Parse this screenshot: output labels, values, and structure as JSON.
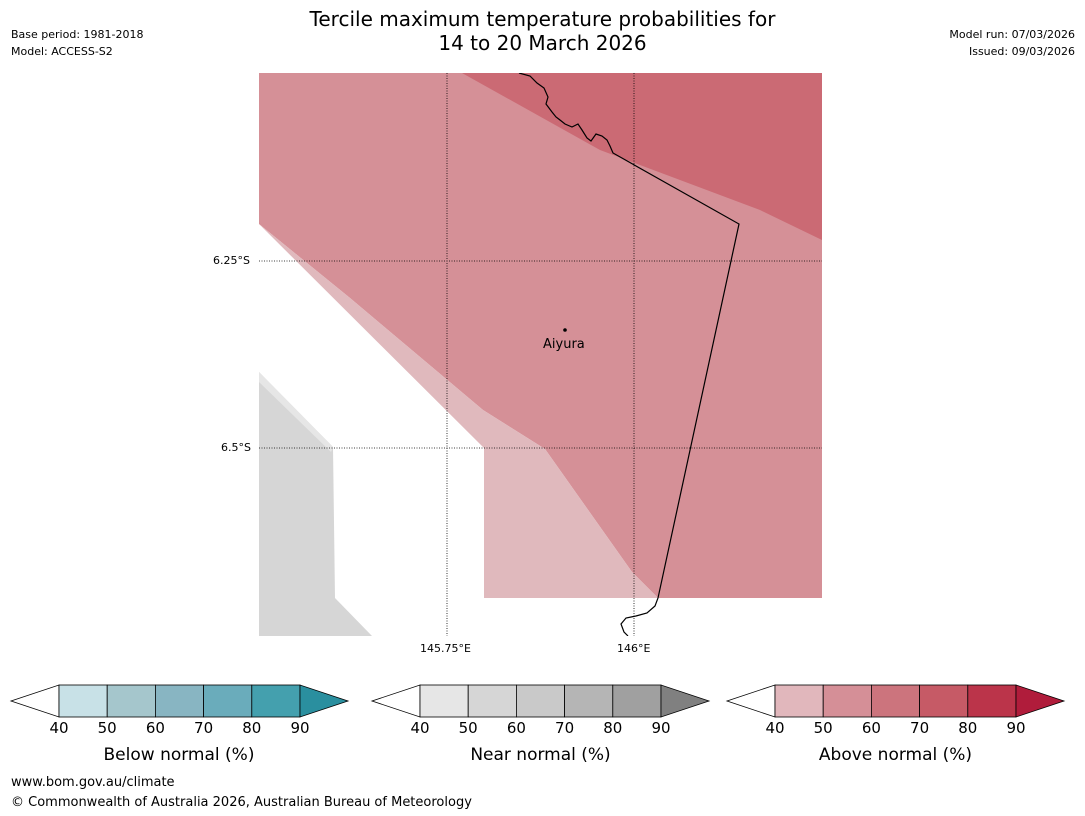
{
  "header": {
    "title_line1": "Tercile maximum temperature probabilities for",
    "title_line2": "14 to 20 March 2026",
    "base_period": "Base period: 1981-2018",
    "model": "Model: ACCESS-S2",
    "model_run": "Model run: 07/03/2026",
    "issued": "Issued: 09/03/2026"
  },
  "map": {
    "lat_labels": [
      "6.25°S",
      "6.5°S"
    ],
    "lon_labels": [
      "145.75°E",
      "146°E"
    ],
    "place": {
      "name": "Aiyura"
    }
  },
  "legend": {
    "ticks": [
      "40",
      "50",
      "60",
      "70",
      "80",
      "90"
    ],
    "below": {
      "label": "Below normal (%)",
      "colors": [
        "#c8e1e7",
        "#a5c6cc",
        "#88b5c2",
        "#6aacbb",
        "#44a0ae",
        "#2a8f9f"
      ]
    },
    "near": {
      "label": "Near normal (%)",
      "colors": [
        "#e6e6e6",
        "#d6d6d6",
        "#c9c9c9",
        "#b5b5b5",
        "#a0a0a0",
        "#808080"
      ]
    },
    "above": {
      "label": "Above normal (%)",
      "colors": [
        "#e1b7bc",
        "#d58f97",
        "#cc747d",
        "#c65a66",
        "#bb344a",
        "#b01c3b"
      ]
    }
  },
  "footer": {
    "url": "www.bom.gov.au/climate",
    "copyright": "© Commonwealth of Australia 2026, Australian Bureau of Meteorology"
  }
}
